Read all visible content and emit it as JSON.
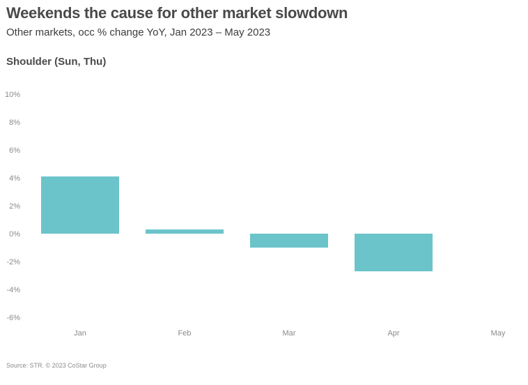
{
  "header": {
    "title": "Weekends the cause for other market slowdown",
    "subtitle": "Other markets, occ % change YoY, Jan 2023 – May 2023",
    "panel_title": "Shoulder (Sun, Thu)"
  },
  "footer": {
    "source": "Source: STR. © 2023 CoStar Group"
  },
  "colors": {
    "bar": "#6bc4ca",
    "text_dark": "#4a4a4a",
    "tick": "#8a8a8a"
  },
  "chart_data": {
    "type": "bar",
    "title": "Shoulder (Sun, Thu)",
    "categories": [
      "Jan",
      "Feb",
      "Mar",
      "Apr",
      "May"
    ],
    "values": [
      4.1,
      0.3,
      -1.0,
      -2.7,
      null
    ],
    "unit": "%",
    "ylim": [
      -6,
      10
    ],
    "yticks": [
      10,
      8,
      6,
      4,
      2,
      0,
      -2,
      -4,
      -6
    ],
    "ytick_labels": [
      "10%",
      "8%",
      "6%",
      "4%",
      "2%",
      "0%",
      "-2%",
      "-4%",
      "-6%"
    ],
    "xlabel": "",
    "ylabel": "",
    "grid": false,
    "legend": "none"
  }
}
